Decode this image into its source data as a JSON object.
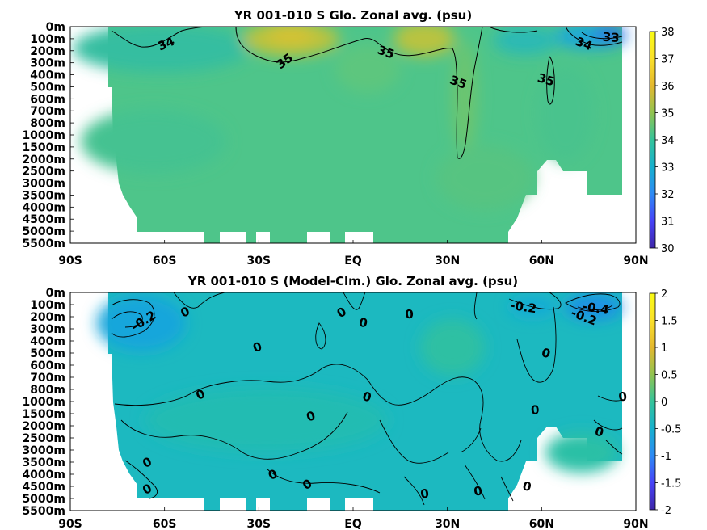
{
  "chart_data": [
    {
      "type": "heatmap",
      "title": "YR 001-010 S Glo. Zonal avg. (psu)",
      "x_ticks": [
        "90S",
        "60S",
        "30S",
        "EQ",
        "30N",
        "60N",
        "90N"
      ],
      "x_values": [
        -90,
        -60,
        -30,
        0,
        30,
        60,
        90
      ],
      "y_ticks": [
        "0m",
        "100m",
        "200m",
        "300m",
        "400m",
        "500m",
        "600m",
        "700m",
        "800m",
        "1000m",
        "1500m",
        "2000m",
        "2500m",
        "3000m",
        "3500m",
        "4000m",
        "4500m",
        "5000m",
        "5500m"
      ],
      "colorbar": {
        "ticks": [
          "38",
          "37",
          "36",
          "35",
          "34",
          "33",
          "32",
          "31",
          "30"
        ],
        "range": [
          30,
          38
        ],
        "colors": [
          "#3e26a8",
          "#4743f8",
          "#2d8af4",
          "#17b1ce",
          "#34c39a",
          "#92c350",
          "#e4b82e",
          "#fae02a",
          "#f9fb14"
        ]
      },
      "contour_labels": [
        {
          "text": "34",
          "lat": -59,
          "depth_index": 1.4
        },
        {
          "text": "35",
          "lat": -21,
          "depth_index": 2.8
        },
        {
          "text": "35",
          "lat": 10,
          "depth_index": 2.1
        },
        {
          "text": "35",
          "lat": 33,
          "depth_index": 4.6
        },
        {
          "text": "35",
          "lat": 61,
          "depth_index": 4.4
        },
        {
          "text": "34",
          "lat": 73,
          "depth_index": 1.4
        },
        {
          "text": "33",
          "lat": 82,
          "depth_index": 0.9
        }
      ]
    },
    {
      "type": "heatmap",
      "title": "YR 001-010 S (Model-Clm.) Glo. Zonal avg. (psu)",
      "x_ticks": [
        "90S",
        "60S",
        "30S",
        "EQ",
        "30N",
        "60N",
        "90N"
      ],
      "x_values": [
        -90,
        -60,
        -30,
        0,
        30,
        60,
        90
      ],
      "y_ticks": [
        "0m",
        "100m",
        "200m",
        "300m",
        "400m",
        "500m",
        "600m",
        "700m",
        "800m",
        "1000m",
        "1500m",
        "2000m",
        "2500m",
        "3000m",
        "3500m",
        "4000m",
        "4500m",
        "5000m",
        "5500m"
      ],
      "colorbar": {
        "ticks": [
          "2",
          "1.5",
          "1",
          "0.5",
          "0",
          "-0.5",
          "-1",
          "-1.5",
          "-2"
        ],
        "range": [
          -2,
          2
        ],
        "colors": [
          "#3e26a8",
          "#4743f8",
          "#2d8af4",
          "#17b1ce",
          "#34c39a",
          "#92c350",
          "#e4b82e",
          "#fae02a",
          "#f9fb14"
        ]
      },
      "contour_labels": [
        {
          "text": "-0.2",
          "lat": -66,
          "depth_index": 2.3
        },
        {
          "text": "0",
          "lat": -53,
          "depth_index": 1.6
        },
        {
          "text": "0",
          "lat": -3,
          "depth_index": 1.6
        },
        {
          "text": "0",
          "lat": 3,
          "depth_index": 2.5
        },
        {
          "text": "0",
          "lat": 18,
          "depth_index": 1.8
        },
        {
          "text": "-0.2",
          "lat": 54,
          "depth_index": 1.2
        },
        {
          "text": "-0.4",
          "lat": 77,
          "depth_index": 1.3
        },
        {
          "text": "-0.2",
          "lat": 73,
          "depth_index": 2.0
        },
        {
          "text": "0",
          "lat": -30,
          "depth_index": 4.5
        },
        {
          "text": "0",
          "lat": 61,
          "depth_index": 5.0
        },
        {
          "text": "0",
          "lat": -48,
          "depth_index": 8.4
        },
        {
          "text": "0",
          "lat": 4,
          "depth_index": 8.6
        },
        {
          "text": "0",
          "lat": -13,
          "depth_index": 10.2
        },
        {
          "text": "0",
          "lat": 58,
          "depth_index": 9.7
        },
        {
          "text": "0",
          "lat": 86,
          "depth_index": 8.6
        },
        {
          "text": "0",
          "lat": 78,
          "depth_index": 11.5
        },
        {
          "text": "0",
          "lat": -65,
          "depth_index": 14.0
        },
        {
          "text": "0",
          "lat": -25,
          "depth_index": 15.0
        },
        {
          "text": "0",
          "lat": -65,
          "depth_index": 16.2
        },
        {
          "text": "0",
          "lat": -14,
          "depth_index": 15.8
        },
        {
          "text": "0",
          "lat": 23,
          "depth_index": 16.6
        },
        {
          "text": "0",
          "lat": 40,
          "depth_index": 16.4
        },
        {
          "text": "0",
          "lat": 55,
          "depth_index": 16.0
        }
      ]
    }
  ]
}
